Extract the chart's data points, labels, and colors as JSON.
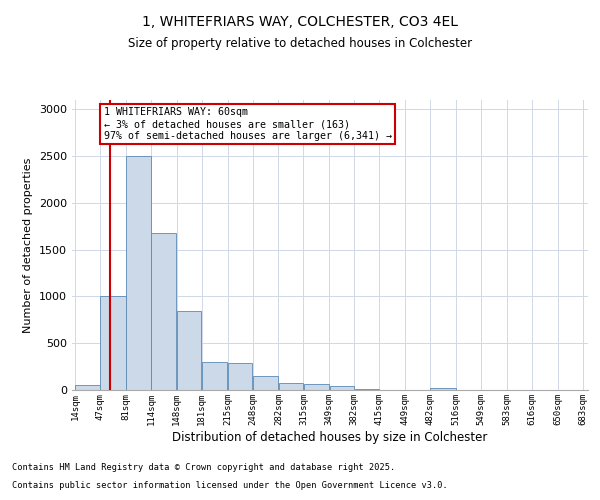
{
  "title_line1": "1, WHITEFRIARS WAY, COLCHESTER, CO3 4EL",
  "title_line2": "Size of property relative to detached houses in Colchester",
  "xlabel": "Distribution of detached houses by size in Colchester",
  "ylabel": "Number of detached properties",
  "footnote1": "Contains HM Land Registry data © Crown copyright and database right 2025.",
  "footnote2": "Contains public sector information licensed under the Open Government Licence v3.0.",
  "annotation_title": "1 WHITEFRIARS WAY: 60sqm",
  "annotation_line2": "← 3% of detached houses are smaller (163)",
  "annotation_line3": "97% of semi-detached houses are larger (6,341) →",
  "property_size_sqm": 60,
  "bar_left_edges": [
    14,
    47,
    81,
    114,
    148,
    181,
    215,
    248,
    282,
    315,
    349,
    382,
    415,
    449,
    482,
    516,
    549,
    583,
    616,
    650
  ],
  "bar_widths": [
    33,
    34,
    33,
    34,
    33,
    34,
    33,
    34,
    33,
    34,
    33,
    33,
    34,
    33,
    34,
    33,
    34,
    33,
    34,
    33
  ],
  "bar_heights": [
    50,
    1010,
    2500,
    1680,
    840,
    295,
    290,
    155,
    80,
    60,
    40,
    10,
    5,
    0,
    25,
    5,
    2,
    0,
    0,
    0
  ],
  "bar_color": "#ccd9e8",
  "bar_edge_color": "#5b8ab5",
  "vline_x": 60,
  "vline_color": "#cc0000",
  "ylim": [
    0,
    3100
  ],
  "yticks": [
    0,
    500,
    1000,
    1500,
    2000,
    2500,
    3000
  ],
  "xlim": [
    10,
    690
  ],
  "grid_color": "#d0d8e8",
  "annotation_box_color": "#cc0000",
  "bg_color": "#ffffff"
}
